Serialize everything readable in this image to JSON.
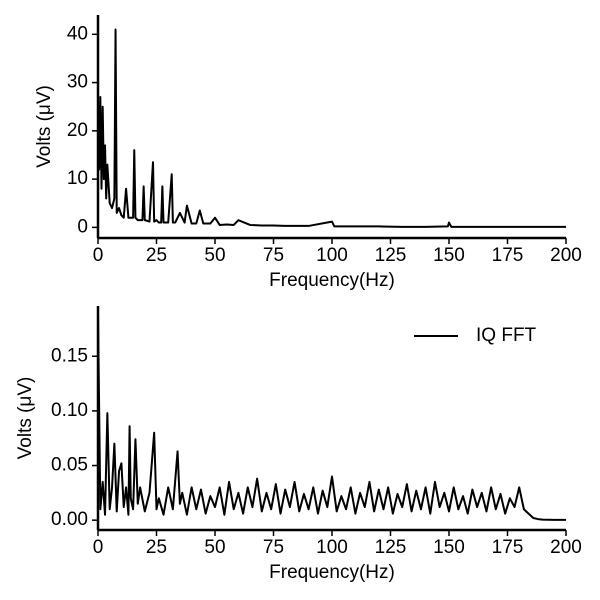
{
  "chart_data": [
    {
      "type": "line",
      "x_label": "Frequency(Hz)",
      "y_label": "Volts (μV)",
      "xlim": [
        0,
        200
      ],
      "xticks": [
        0,
        25,
        50,
        75,
        100,
        125,
        150,
        175,
        200
      ],
      "ylim": [
        -2.2,
        44
      ],
      "yticks": [
        0,
        10,
        20,
        30,
        40
      ],
      "series": [
        {
          "color": "#000000",
          "x": [
            0,
            0.5,
            1,
            1.5,
            2,
            2.5,
            3,
            3.5,
            4,
            5,
            6,
            7,
            7.5,
            8,
            9,
            10,
            11,
            12,
            13,
            14,
            15,
            15.5,
            16,
            17,
            18,
            19,
            19.5,
            20,
            22,
            23.5,
            24,
            25,
            26,
            27,
            27.5,
            28,
            30,
            31.5,
            32,
            33,
            35,
            37,
            38,
            40,
            42,
            43.5,
            45,
            48,
            50,
            52,
            55,
            58,
            60,
            65,
            70,
            75,
            80,
            90,
            100,
            101,
            110,
            120,
            130,
            140,
            149.5,
            150,
            151,
            160,
            170,
            180,
            190,
            200
          ],
          "values": [
            27,
            12,
            27,
            8,
            25,
            10,
            17,
            6,
            13,
            5,
            4,
            6,
            41,
            3,
            4,
            2.5,
            2,
            8,
            2,
            2,
            2,
            16,
            2,
            1.5,
            1.5,
            1.5,
            8.5,
            1.5,
            1.2,
            13.5,
            1.2,
            1.5,
            1,
            1,
            8.5,
            1,
            1,
            11,
            1,
            1,
            3,
            1,
            4.5,
            0.8,
            0.8,
            3.5,
            0.8,
            0.8,
            2,
            0.5,
            0.6,
            0.5,
            1.5,
            0.5,
            0.4,
            0.4,
            0.3,
            0.3,
            1.2,
            0.2,
            0.2,
            0.2,
            0.1,
            0.1,
            0.2,
            1,
            0.1,
            0.1,
            0.1,
            0.1,
            0.1,
            0.1
          ]
        }
      ]
    },
    {
      "type": "line",
      "x_label": "Frequency(Hz)",
      "y_label": "Volts (μV)",
      "xlim": [
        0,
        200
      ],
      "xticks": [
        0,
        25,
        50,
        75,
        100,
        125,
        150,
        175,
        200
      ],
      "ylim": [
        -0.009,
        0.196
      ],
      "yticks": [
        {
          "value": 0,
          "label": "0.00"
        },
        {
          "value": 0.05,
          "label": "0.05"
        },
        {
          "value": 0.1,
          "label": "0.10"
        },
        {
          "value": 0.15,
          "label": "0.15"
        }
      ],
      "legend": "upper right",
      "series": [
        {
          "name": "IQ FFT",
          "color": "#000000",
          "x": [
            0,
            1,
            2,
            3,
            4,
            5,
            6,
            7,
            8,
            9,
            10,
            11,
            12,
            13,
            13.5,
            14,
            15,
            16,
            17,
            18,
            20,
            22,
            24,
            25,
            26,
            28,
            30,
            32,
            34,
            35,
            36,
            38,
            40,
            42,
            44,
            46,
            48,
            50,
            52,
            54,
            56,
            58,
            60,
            62,
            64,
            66,
            68,
            70,
            72,
            74,
            76,
            78,
            80,
            82,
            84,
            86,
            88,
            90,
            92,
            94,
            96,
            98,
            100,
            102,
            104,
            106,
            108,
            110,
            112,
            114,
            116,
            118,
            120,
            122,
            124,
            126,
            128,
            130,
            132,
            134,
            136,
            138,
            140,
            142,
            144,
            146,
            148,
            150,
            152,
            154,
            156,
            158,
            160,
            162,
            164,
            166,
            168,
            170,
            172,
            174,
            176,
            178,
            180,
            182,
            184,
            186,
            188,
            190,
            195,
            200
          ],
          "values": [
            0.19,
            0.01,
            0.035,
            0.005,
            0.098,
            0.01,
            0.03,
            0.07,
            0.008,
            0.045,
            0.052,
            0.012,
            0.03,
            0.005,
            0.086,
            0.02,
            0.01,
            0.074,
            0.015,
            0.03,
            0.008,
            0.025,
            0.08,
            0.01,
            0.02,
            0.005,
            0.03,
            0.01,
            0.063,
            0.015,
            0.025,
            0.005,
            0.03,
            0.01,
            0.028,
            0.006,
            0.022,
            0.012,
            0.03,
            0.005,
            0.035,
            0.01,
            0.025,
            0.006,
            0.03,
            0.012,
            0.038,
            0.008,
            0.025,
            0.01,
            0.033,
            0.006,
            0.028,
            0.012,
            0.035,
            0.008,
            0.024,
            0.01,
            0.03,
            0.006,
            0.027,
            0.012,
            0.04,
            0.008,
            0.022,
            0.01,
            0.03,
            0.006,
            0.025,
            0.012,
            0.035,
            0.008,
            0.028,
            0.01,
            0.03,
            0.006,
            0.024,
            0.012,
            0.033,
            0.008,
            0.027,
            0.01,
            0.03,
            0.006,
            0.035,
            0.012,
            0.025,
            0.008,
            0.03,
            0.01,
            0.022,
            0.006,
            0.028,
            0.012,
            0.025,
            0.008,
            0.03,
            0.01,
            0.024,
            0.006,
            0.02,
            0.012,
            0.03,
            0.01,
            0.006,
            0.002,
            0.001,
            0.0005,
            0.0003,
            0.0003
          ]
        }
      ]
    }
  ]
}
